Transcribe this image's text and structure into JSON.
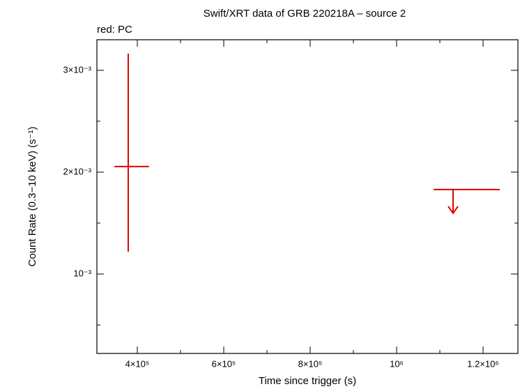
{
  "chart_data": {
    "type": "errorbar",
    "title": "Swift/XRT data of GRB 220218A – source 2",
    "subtitle": "red: PC",
    "xlabel": "Time since trigger (s)",
    "ylabel": "Count Rate (0.3−10 keV) (s⁻¹)",
    "xlim": [
      306500,
      1280600
    ],
    "ylim": [
      0.00022,
      0.0033
    ],
    "xticks": [
      {
        "value": 400000,
        "label": "4×10⁵"
      },
      {
        "value": 600000,
        "label": "6×10⁵"
      },
      {
        "value": 800000,
        "label": "8×10⁵"
      },
      {
        "value": 1000000,
        "label": "10⁶"
      },
      {
        "value": 1200000,
        "label": "1.2×10⁶"
      }
    ],
    "yticks": [
      {
        "value": 0.001,
        "label": "10⁻³"
      },
      {
        "value": 0.002,
        "label": "2×10⁻³"
      },
      {
        "value": 0.003,
        "label": "3×10⁻³"
      }
    ],
    "xminorticks": [
      500000,
      700000,
      900000,
      1100000
    ],
    "yminorticks": [
      0.0005,
      0.0015,
      0.0025
    ],
    "series": [
      {
        "color": "#e00000",
        "x": [
          379000
        ],
        "values": [
          0.002055
        ],
        "xerr": [
          [
            32000,
            48000
          ]
        ],
        "yerr": [
          [
            0.000836,
            0.001109
          ]
        ]
      },
      {
        "color": "#e00000",
        "x": [
          1130600
        ],
        "values": [
          0.001829
        ],
        "xerr": [
          [
            45100,
            108100
          ]
        ],
        "upper_limit": true
      }
    ]
  }
}
